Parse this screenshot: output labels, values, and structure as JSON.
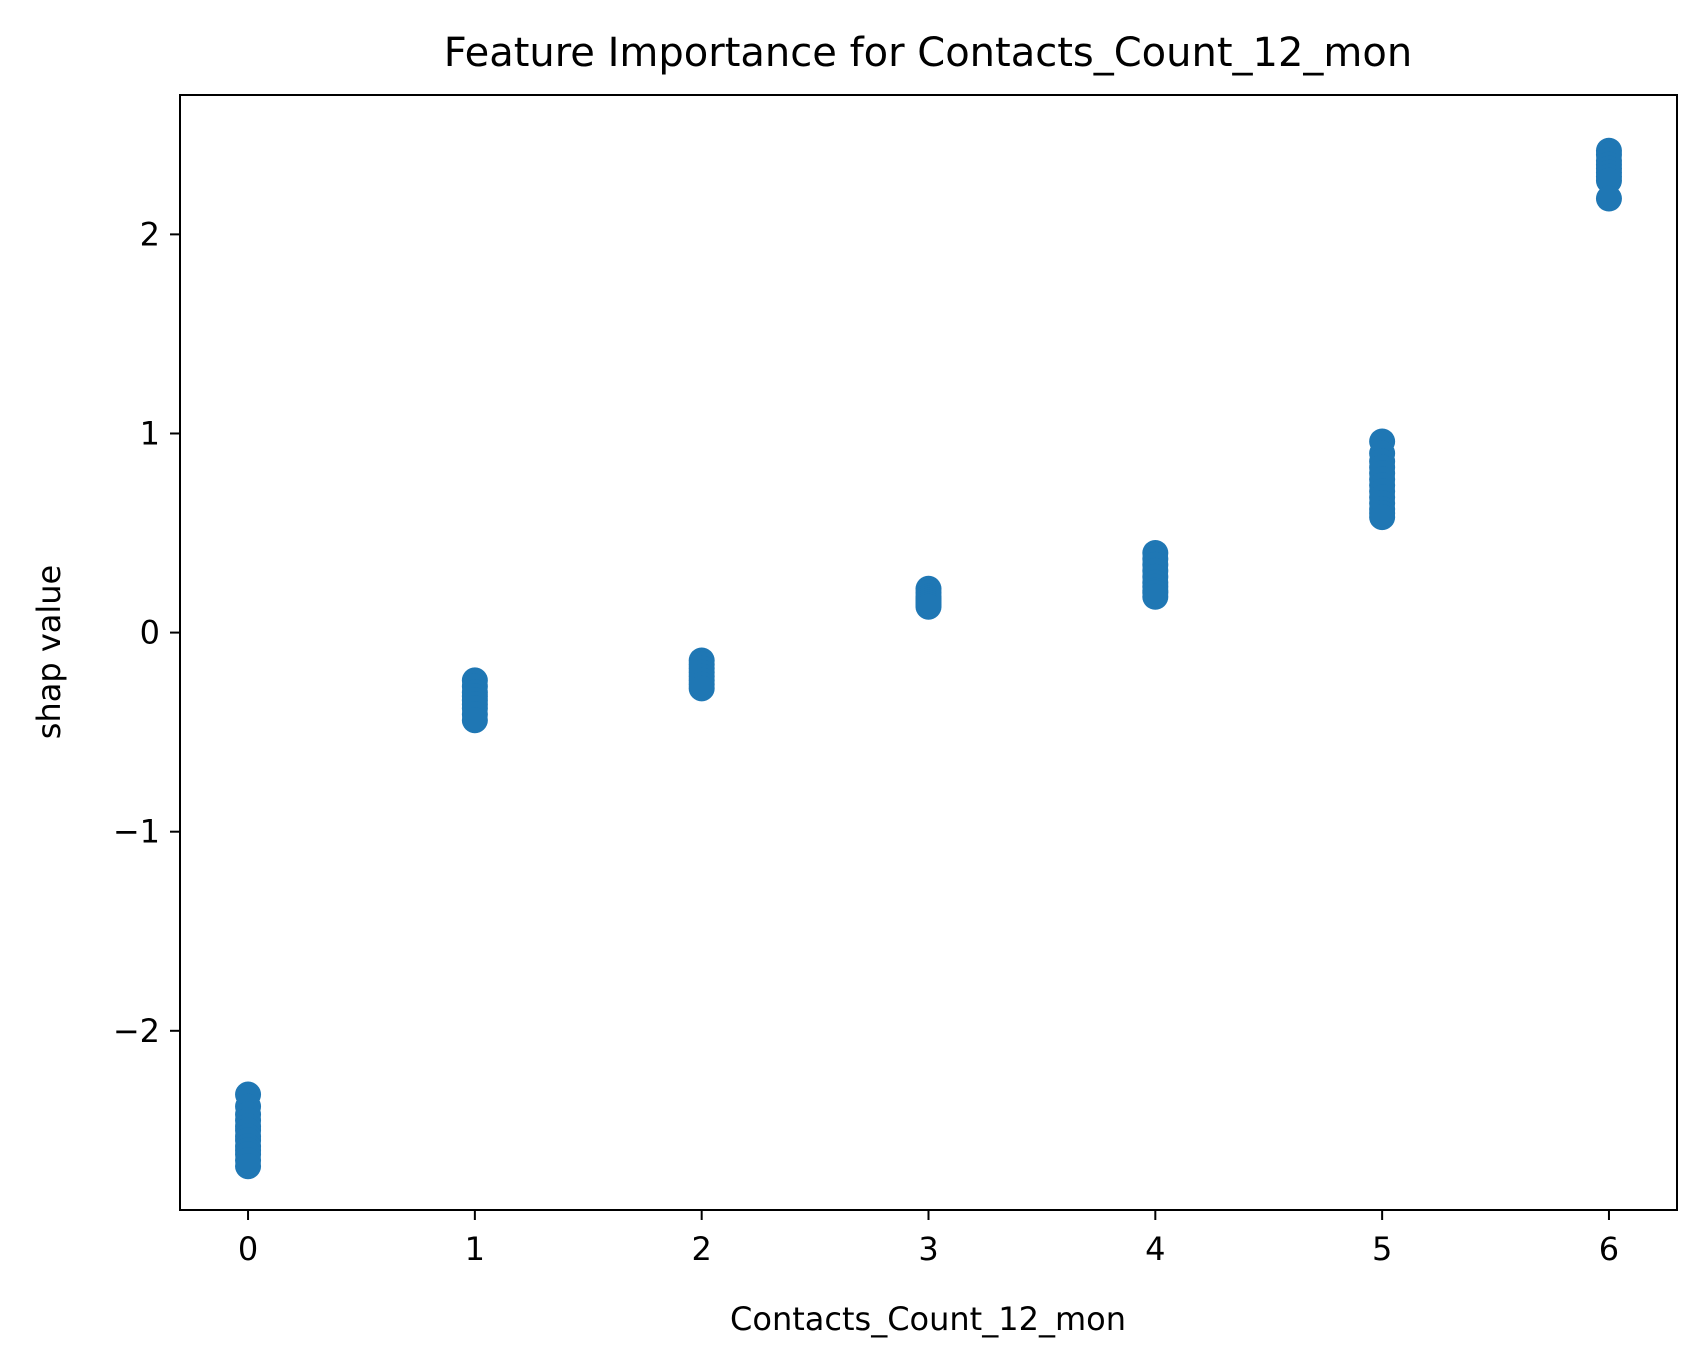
{
  "chart_data": {
    "type": "scatter",
    "title": "Feature Importance for Contacts_Count_12_mon",
    "xlabel": "Contacts_Count_12_mon",
    "ylabel": "shap value",
    "xlim": [
      -0.3,
      6.3
    ],
    "ylim": [
      -2.9,
      2.7
    ],
    "xticks": [
      0,
      1,
      2,
      3,
      4,
      5,
      6
    ],
    "xtick_labels": [
      "0",
      "1",
      "2",
      "3",
      "4",
      "5",
      "6"
    ],
    "yticks": [
      -2,
      -1,
      0,
      1,
      2
    ],
    "ytick_labels": [
      "−2",
      "−1",
      "0",
      "1",
      "2"
    ],
    "grid": false,
    "color": "#1f77b4",
    "series": [
      {
        "x": [
          0,
          0,
          0,
          0,
          0,
          0,
          0,
          0,
          0,
          0,
          0,
          0,
          0,
          1,
          1,
          1,
          1,
          1,
          1,
          1,
          1,
          1,
          2,
          2,
          2,
          2,
          2,
          2,
          2,
          2,
          3,
          3,
          3,
          3,
          3,
          3,
          3,
          3,
          4,
          4,
          4,
          4,
          4,
          4,
          4,
          4,
          4,
          4,
          5,
          5,
          5,
          5,
          5,
          5,
          5,
          5,
          5,
          5,
          5,
          5,
          5,
          6,
          6,
          6,
          6,
          6,
          6,
          6,
          6,
          6
        ],
        "y": [
          -2.32,
          -2.38,
          -2.42,
          -2.45,
          -2.48,
          -2.5,
          -2.53,
          -2.55,
          -2.58,
          -2.6,
          -2.62,
          -2.65,
          -2.68,
          -0.24,
          -0.27,
          -0.3,
          -0.32,
          -0.34,
          -0.36,
          -0.38,
          -0.41,
          -0.44,
          -0.14,
          -0.16,
          -0.18,
          -0.2,
          -0.22,
          -0.24,
          -0.26,
          -0.28,
          0.22,
          0.2,
          0.18,
          0.17,
          0.16,
          0.15,
          0.14,
          0.13,
          0.4,
          0.37,
          0.34,
          0.31,
          0.28,
          0.25,
          0.23,
          0.21,
          0.2,
          0.18,
          0.96,
          0.9,
          0.86,
          0.83,
          0.8,
          0.77,
          0.74,
          0.71,
          0.68,
          0.65,
          0.62,
          0.6,
          0.58,
          2.42,
          2.4,
          2.37,
          2.35,
          2.33,
          2.31,
          2.29,
          2.27,
          2.18
        ]
      }
    ]
  }
}
